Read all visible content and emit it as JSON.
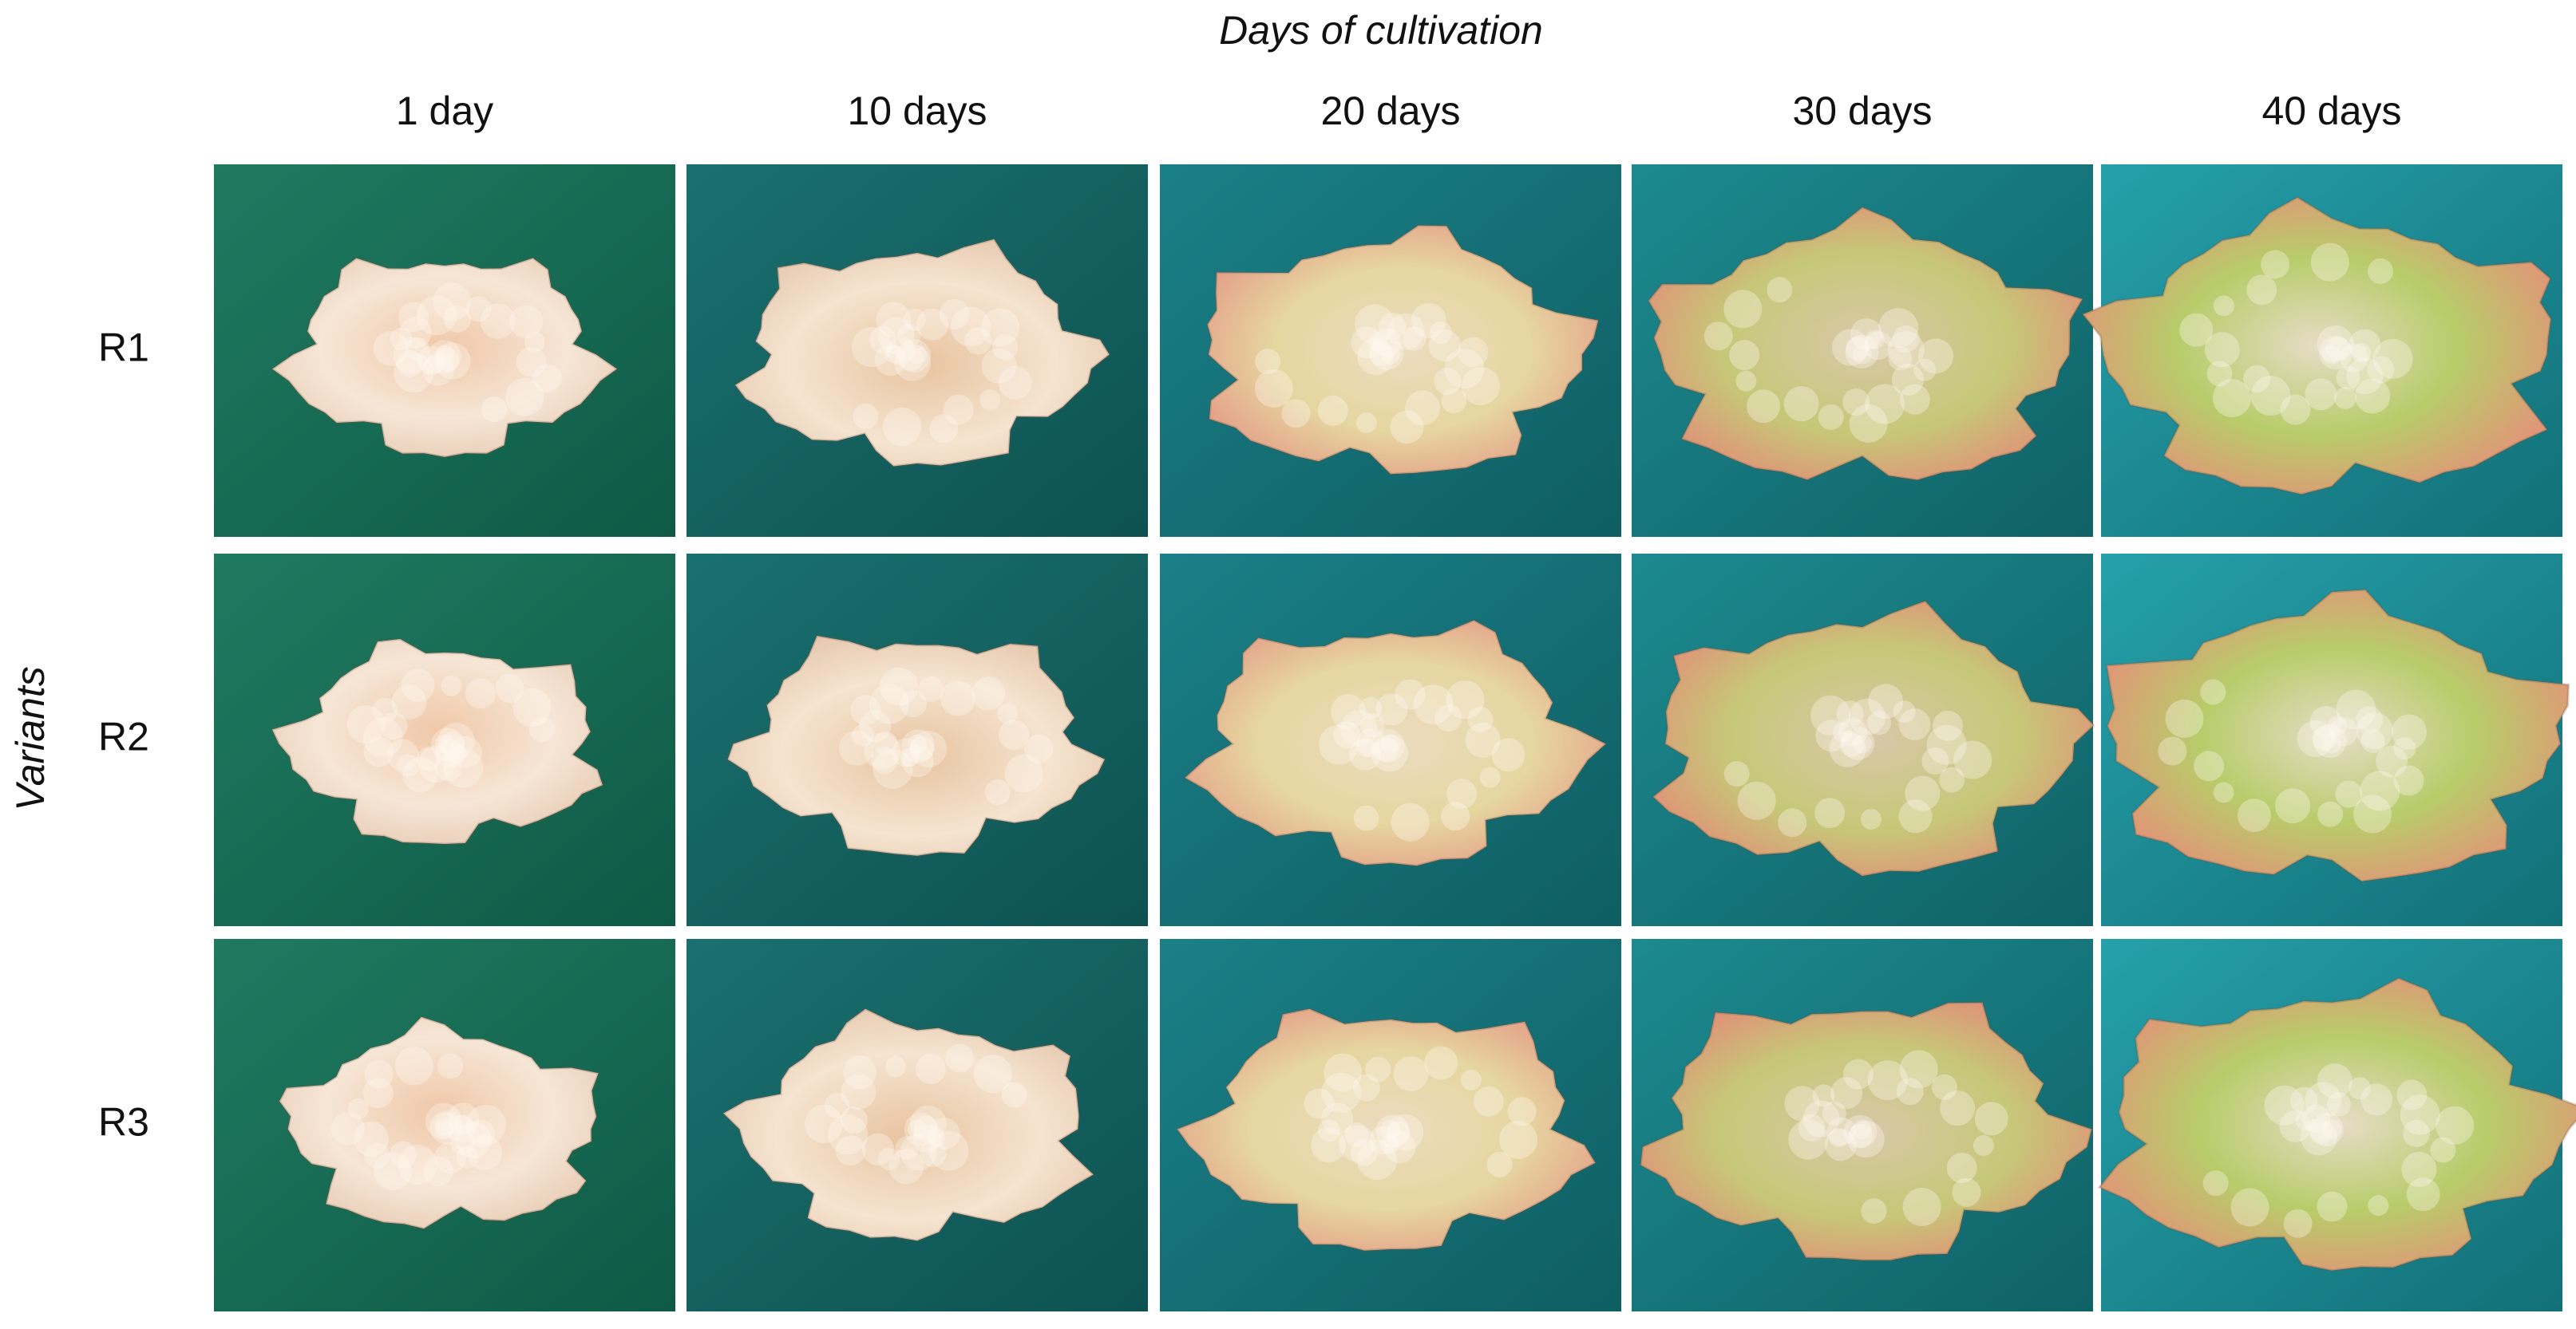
{
  "title": "Days of cultivation",
  "columns": [
    "1 day",
    "10 days",
    "20 days",
    "30 days",
    "40 days"
  ],
  "row_axis_label": "Variants",
  "rows": [
    "R1",
    "R2",
    "R3"
  ]
}
